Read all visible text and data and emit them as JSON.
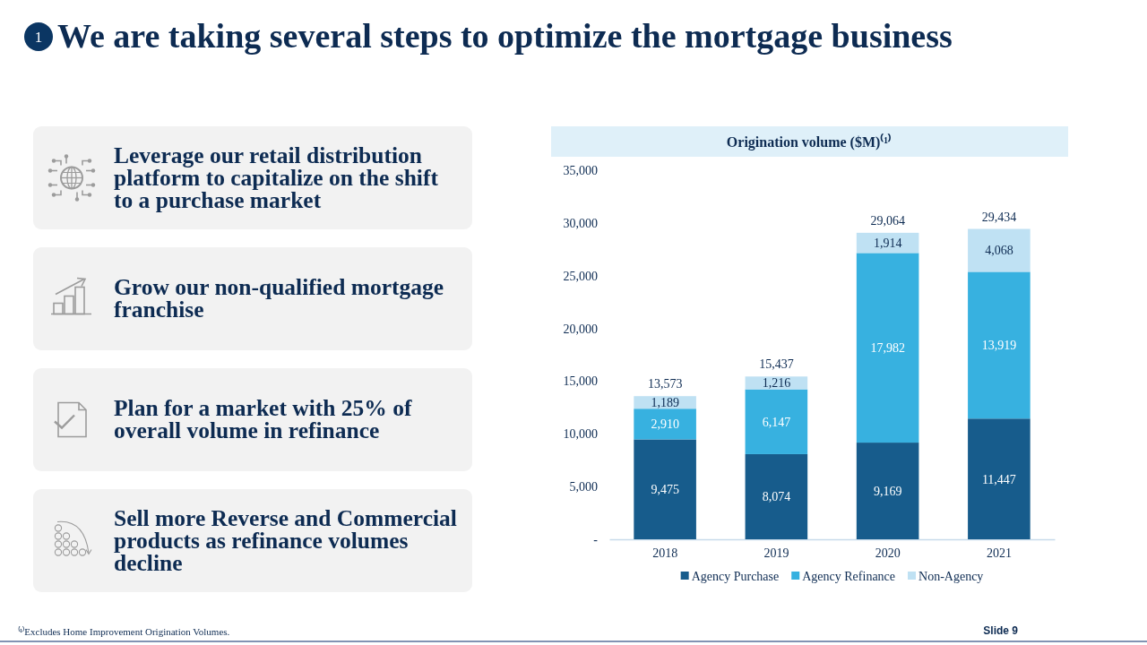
{
  "chart_data": [
    {
      "type": "other",
      "title": "We are taking several steps to optimize the mortgage business",
      "annotations": [
        "1",
        "Leverage our retail distribution platform to capitalize on the shift to a purchase market",
        "Grow our non-qualified mortgage franchise",
        "Plan for a market with 25% of overall volume in refinance",
        "Sell more Reverse and Commercial products as refinance volumes decline",
        "Slide 9"
      ]
    },
    {
      "type": "bar",
      "title": "Origination volume ($M)⁽¹⁾",
      "categories": [
        "2018",
        "2019",
        "2020",
        "2021"
      ],
      "stacked": true,
      "series": [
        {
          "name": "Agency Purchase",
          "color": "#175c8c",
          "values": [
            9475,
            8074,
            9169,
            11447
          ],
          "value_labels": [
            "9,475",
            "8,074",
            "9,169",
            "11,447"
          ]
        },
        {
          "name": "Agency Refinance",
          "color": "#37b1e0",
          "values": [
            2910,
            6147,
            17982,
            13919
          ],
          "value_labels": [
            "2,910",
            "6,147",
            "17,982",
            "13,919"
          ]
        },
        {
          "name": "Non-Agency",
          "color": "#bfe1f3",
          "values": [
            1189,
            1216,
            1914,
            4068
          ],
          "value_labels": [
            "1,189",
            "1,216",
            "1,914",
            "4,068"
          ]
        }
      ],
      "ylim": [
        0,
        35000
      ],
      "yticks": [
        {
          "value": 0,
          "label": "-"
        },
        {
          "value": 5000,
          "label": "5,000"
        },
        {
          "value": 10000,
          "label": "10,000"
        },
        {
          "value": 15000,
          "label": "15,000"
        },
        {
          "value": 20000,
          "label": "20,000"
        },
        {
          "value": 25000,
          "label": "25,000"
        },
        {
          "value": 30000,
          "label": "30,000"
        },
        {
          "value": 35000,
          "label": "35,000"
        }
      ],
      "legend": "bottom",
      "totals": [
        "13,573",
        "15,437",
        "29,064",
        "29,434"
      ],
      "annotations": [
        "⁽¹⁾Excludes Home Improvement Origination Volumes."
      ]
    }
  ]
}
